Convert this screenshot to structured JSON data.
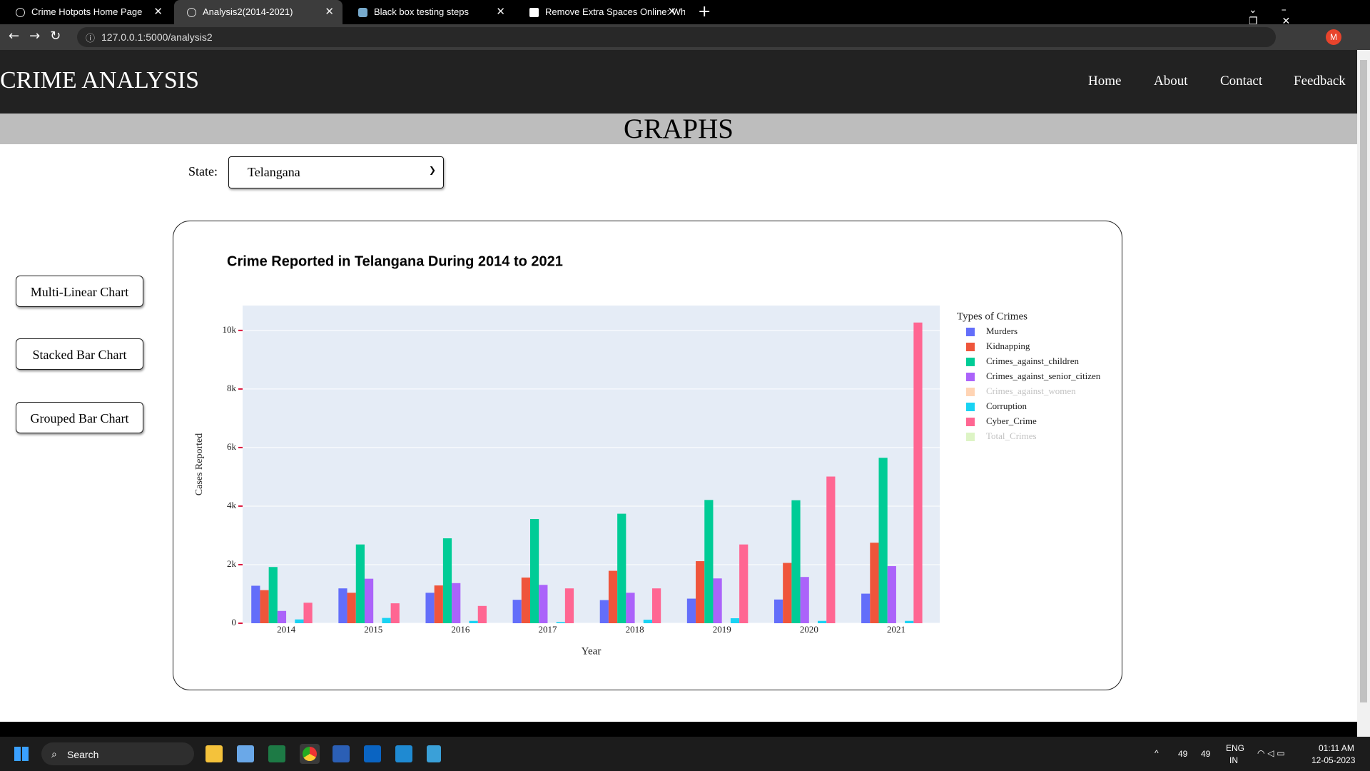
{
  "browser": {
    "tabs": [
      "Crime Hotpots Home Page",
      "Analysis2(2014-2021)",
      "Black box testing steps",
      "Remove Extra Spaces Online: Wh"
    ],
    "url": "127.0.0.1:5000/analysis2",
    "profile": "M"
  },
  "header": {
    "brand": "CRIME ANALYSIS",
    "nav": [
      "Home",
      "About",
      "Contact",
      "Feedback"
    ]
  },
  "banner": "GRAPHS",
  "filter": {
    "label": "State:",
    "selected": "Telangana"
  },
  "sidebar": [
    "Multi-Linear Chart",
    "Stacked Bar Chart",
    "Grouped Bar Chart"
  ],
  "chart_data": {
    "type": "bar",
    "title": "Crime Reported in Telangana During 2014 to 2021",
    "x_label": "Year",
    "y_label": "Cases Reported",
    "legend_title": "Types of Crimes",
    "categories": [
      "2014",
      "2015",
      "2016",
      "2017",
      "2018",
      "2019",
      "2020",
      "2021"
    ],
    "series": [
      {
        "name": "Murders",
        "color": "#636efa",
        "values": [
          1280,
          1190,
          1040,
          800,
          790,
          840,
          810,
          1010
        ]
      },
      {
        "name": "Kidnapping",
        "color": "#EF553B",
        "values": [
          1130,
          1040,
          1290,
          1560,
          1790,
          2120,
          2060,
          2750
        ]
      },
      {
        "name": "Crimes_against_children",
        "color": "#00cc96",
        "values": [
          1920,
          2690,
          2900,
          3560,
          3740,
          4210,
          4200,
          5650
        ]
      },
      {
        "name": "Crimes_against_senior_citizen",
        "color": "#ab63fa",
        "values": [
          420,
          1520,
          1370,
          1310,
          1040,
          1530,
          1580,
          1950
        ]
      },
      {
        "name": "Crimes_against_women",
        "color": "#FFA15A",
        "visible": false
      },
      {
        "name": "Corruption",
        "color": "#19d3f3",
        "values": [
          130,
          180,
          80,
          40,
          120,
          170,
          80,
          80
        ]
      },
      {
        "name": "Cyber_Crime",
        "color": "#FF6692",
        "values": [
          700,
          680,
          590,
          1190,
          1190,
          2690,
          5010,
          10270
        ]
      },
      {
        "name": "Total_Crimes",
        "color": "#B6E880",
        "visible": false
      }
    ],
    "ylim": [
      0,
      10850
    ],
    "yticks": [
      0,
      {
        "value": 2000,
        "label": "2k"
      },
      {
        "value": 4000,
        "label": "4k"
      },
      {
        "value": 6000,
        "label": "6k"
      },
      {
        "value": 8000,
        "label": "8k"
      },
      {
        "value": 10000,
        "label": "10k"
      }
    ],
    "grid": true,
    "legend": "right",
    "plot_bgcolor": "#E5ECF6"
  },
  "taskbar": {
    "search": "Search",
    "tray": [
      "49",
      "49"
    ],
    "lang": [
      "ENG",
      "IN"
    ],
    "time": "01:11 AM",
    "date": "12-05-2023"
  }
}
